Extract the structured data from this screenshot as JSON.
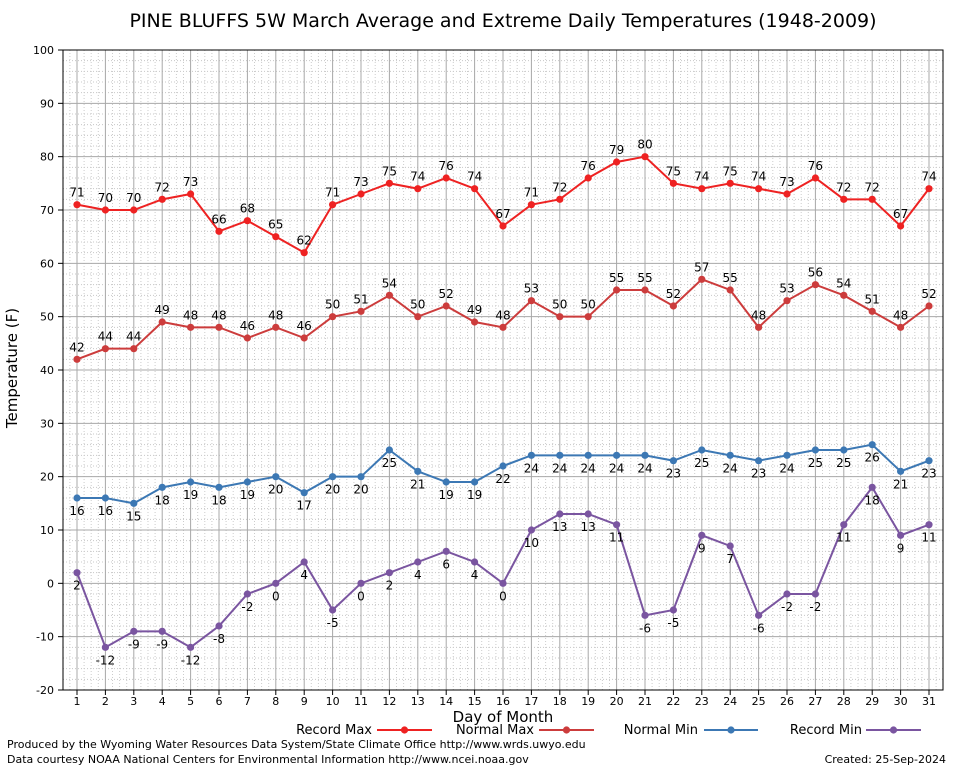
{
  "chart_data": {
    "type": "line",
    "title": "PINE BLUFFS 5W March Average and Extreme Daily Temperatures (1948-2009)",
    "xlabel": "Day of Month",
    "ylabel": "Temperature (F)",
    "ylim": [
      -20,
      100
    ],
    "xlim": [
      1,
      31
    ],
    "yticks": [
      -20,
      -10,
      0,
      10,
      20,
      30,
      40,
      50,
      60,
      70,
      80,
      90,
      100
    ],
    "grid": true,
    "legend_position": "bottom",
    "x": [
      1,
      2,
      3,
      4,
      5,
      6,
      7,
      8,
      9,
      10,
      11,
      12,
      13,
      14,
      15,
      16,
      17,
      18,
      19,
      20,
      21,
      22,
      23,
      24,
      25,
      26,
      27,
      28,
      29,
      30,
      31
    ],
    "series": [
      {
        "name": "Record Max",
        "color": "#ee2222",
        "label_pos": "above",
        "values": [
          71,
          70,
          70,
          72,
          73,
          66,
          68,
          65,
          62,
          71,
          73,
          75,
          74,
          76,
          74,
          67,
          71,
          72,
          76,
          79,
          80,
          75,
          74,
          75,
          74,
          73,
          76,
          72,
          72,
          67,
          74
        ]
      },
      {
        "name": "Normal Max",
        "color": "#cc3c3c",
        "label_pos": "above",
        "values": [
          42,
          44,
          44,
          49,
          48,
          48,
          46,
          48,
          46,
          50,
          51,
          54,
          50,
          52,
          49,
          48,
          53,
          50,
          50,
          55,
          55,
          52,
          57,
          55,
          48,
          53,
          56,
          54,
          51,
          48,
          52
        ]
      },
      {
        "name": "Normal Min",
        "color": "#3c78b4",
        "label_pos": "below",
        "values": [
          16,
          16,
          15,
          18,
          19,
          18,
          19,
          20,
          17,
          20,
          20,
          25,
          21,
          19,
          19,
          22,
          24,
          24,
          24,
          24,
          24,
          23,
          25,
          24,
          23,
          24,
          25,
          25,
          26,
          21,
          23
        ]
      },
      {
        "name": "Record Min",
        "color": "#7a55a0",
        "label_pos": "below",
        "values": [
          2,
          -12,
          -9,
          -9,
          -12,
          -8,
          -2,
          0,
          4,
          -5,
          0,
          2,
          4,
          6,
          4,
          0,
          10,
          13,
          13,
          11,
          -6,
          -5,
          9,
          7,
          -6,
          -2,
          -2,
          11,
          18,
          9,
          11
        ]
      }
    ]
  },
  "footer": {
    "produced_by": "Produced by the Wyoming Water Resources Data System/State Climate Office http://www.wrds.uwyo.edu",
    "data_courtesy": "Data courtesy NOAA National Centers for Environmental Information http://www.ncei.noaa.gov",
    "created": "Created:  25-Sep-2024"
  }
}
